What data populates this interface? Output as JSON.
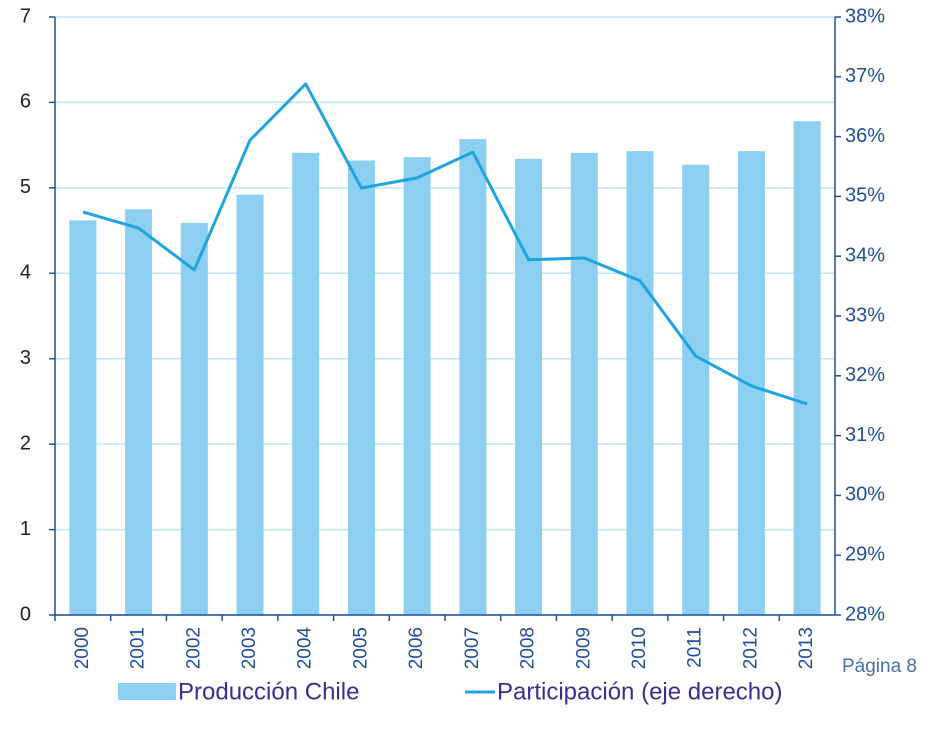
{
  "chart_data": {
    "type": "bar",
    "categories": [
      "2000",
      "2001",
      "2002",
      "2003",
      "2004",
      "2005",
      "2006",
      "2007",
      "2008",
      "2009",
      "2010",
      "2011",
      "2012",
      "2013"
    ],
    "series": [
      {
        "name": "Producción Chile",
        "type": "bar",
        "color": "#8ccff0",
        "values": [
          4.62,
          4.75,
          4.59,
          4.92,
          5.41,
          5.32,
          5.36,
          5.57,
          5.34,
          5.41,
          5.43,
          5.27,
          5.43,
          5.78
        ]
      },
      {
        "name": "Participación (eje derecho)",
        "type": "line",
        "axis": "y2",
        "color": "#1ea5df",
        "values": [
          34.74,
          34.47,
          33.77,
          35.94,
          36.88,
          35.14,
          35.31,
          35.74,
          33.94,
          33.97,
          33.59,
          32.33,
          31.83,
          31.53
        ]
      }
    ],
    "ylim": [
      0,
      7
    ],
    "yticks": [
      0,
      1,
      2,
      3,
      4,
      5,
      6,
      7
    ],
    "y2lim": [
      28,
      38
    ],
    "y2ticks": [
      {
        "value": 28,
        "label": "28%"
      },
      {
        "value": 29,
        "label": "29%"
      },
      {
        "value": 30,
        "label": "30%"
      },
      {
        "value": 31,
        "label": "31%"
      },
      {
        "value": 32,
        "label": "32%"
      },
      {
        "value": 33,
        "label": "33%"
      },
      {
        "value": 34,
        "label": "34%"
      },
      {
        "value": 35,
        "label": "35%"
      },
      {
        "value": 36,
        "label": "36%"
      },
      {
        "value": 37,
        "label": "37%"
      },
      {
        "value": 38,
        "label": "38%"
      }
    ],
    "grid": true,
    "legend": "bottom",
    "annotations": [
      "Página 8"
    ]
  }
}
